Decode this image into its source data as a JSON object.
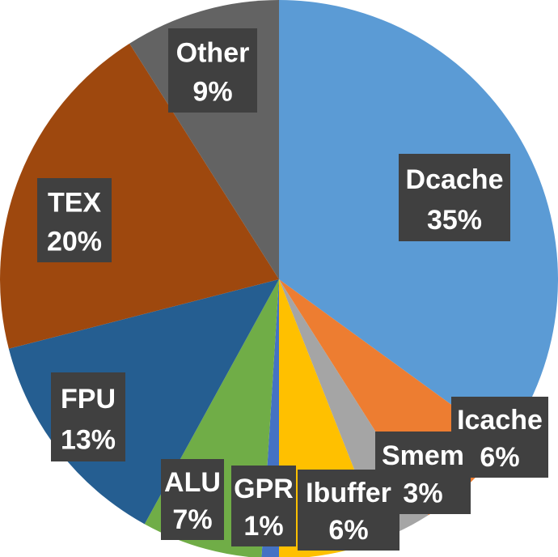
{
  "chart_data": {
    "type": "pie",
    "title": "",
    "start_angle_deg": 0,
    "direction": "clockwise",
    "slices": [
      {
        "name": "Dcache",
        "value": 35,
        "label": "35%",
        "color": "#5B9BD5"
      },
      {
        "name": "Icache",
        "value": 6,
        "label": "6%",
        "color": "#ED7D31"
      },
      {
        "name": "Smem",
        "value": 3,
        "label": "3%",
        "color": "#A5A5A5"
      },
      {
        "name": "Ibuffer",
        "value": 6,
        "label": "6%",
        "color": "#FFC000"
      },
      {
        "name": "GPR",
        "value": 1,
        "label": "1%",
        "color": "#4472C4"
      },
      {
        "name": "ALU",
        "value": 7,
        "label": "7%",
        "color": "#70AD47"
      },
      {
        "name": "FPU",
        "value": 13,
        "label": "13%",
        "color": "#255E91"
      },
      {
        "name": "TEX",
        "value": 20,
        "label": "20%",
        "color": "#9E480E"
      },
      {
        "name": "Other",
        "value": 9,
        "label": "9%",
        "color": "#636363"
      }
    ],
    "data_labels": "boxed, dark background, white bold text: name above percentage"
  }
}
